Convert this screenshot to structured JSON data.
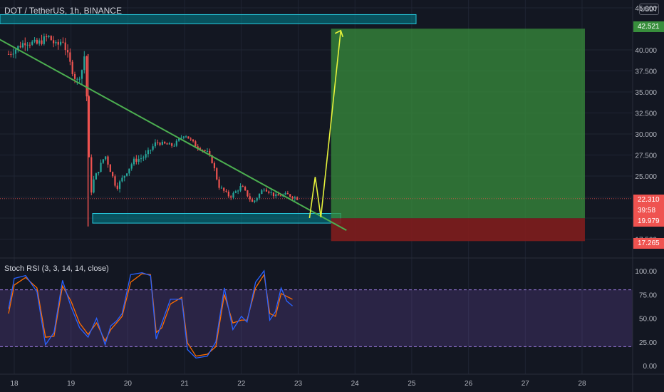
{
  "header": {
    "symbol_title": "DOT / TetherUS, 1h, BINANCE",
    "currency_badge": "USDT"
  },
  "price_axis": {
    "ticks": [
      "45.000",
      "40.000",
      "37.500",
      "35.000",
      "32.500",
      "30.000",
      "27.500",
      "25.000",
      "22.500",
      "20.000",
      "17.500"
    ],
    "target_label": "42.521",
    "current_price": "22.310",
    "countdown": "39:58",
    "entry_label": "19.979",
    "stop_label": "17.265"
  },
  "rsi": {
    "title": "Stoch RSI (3, 3, 14, 14, close)",
    "ticks": [
      "100.00",
      "75.00",
      "50.00",
      "25.00",
      "0.00"
    ]
  },
  "time_axis": {
    "ticks": [
      "18",
      "19",
      "20",
      "21",
      "22",
      "23",
      "24",
      "25",
      "26",
      "27",
      "28"
    ]
  },
  "colors": {
    "background": "#131722",
    "up": "#26a69a",
    "down": "#ef5350",
    "trendline": "#4caf50",
    "projection": "#e6f23b",
    "zone": "#00838f",
    "profit_zone": "#388e3c",
    "loss_zone": "#7f1d1d",
    "rsi_band": "#7e57c2",
    "k_line": "#2962ff",
    "d_line": "#ff6d00"
  },
  "chart_data": {
    "type": "candlestick",
    "symbol": "DOT / TetherUS",
    "interval": "1h",
    "exchange": "BINANCE",
    "ylim": [
      17.0,
      45.0
    ],
    "x_days": [
      "18",
      "19",
      "20",
      "21",
      "22",
      "23",
      "24",
      "25",
      "26",
      "27",
      "28"
    ],
    "price_path": [
      [
        17.9,
        39.5
      ],
      [
        18.2,
        41.0
      ],
      [
        18.4,
        40.7
      ],
      [
        18.6,
        41.6
      ],
      [
        18.75,
        40.4
      ],
      [
        18.85,
        41.3
      ],
      [
        19.0,
        38.0
      ],
      [
        19.1,
        36.2
      ],
      [
        19.2,
        37.8
      ],
      [
        19.25,
        40.0
      ],
      [
        19.3,
        29.0
      ],
      [
        19.35,
        23.0
      ],
      [
        19.4,
        24.5
      ],
      [
        19.6,
        27.5
      ],
      [
        19.8,
        23.6
      ],
      [
        20.1,
        26.8
      ],
      [
        20.3,
        27.3
      ],
      [
        20.5,
        29.0
      ],
      [
        20.8,
        28.6
      ],
      [
        21.0,
        30.0
      ],
      [
        21.2,
        28.6
      ],
      [
        21.4,
        27.8
      ],
      [
        21.5,
        26.5
      ],
      [
        21.6,
        23.8
      ],
      [
        21.8,
        22.5
      ],
      [
        22.0,
        23.8
      ],
      [
        22.2,
        21.8
      ],
      [
        22.4,
        23.6
      ],
      [
        22.6,
        22.6
      ],
      [
        22.8,
        22.8
      ],
      [
        23.0,
        22.3
      ]
    ],
    "last_price": 22.31,
    "levels": {
      "target": 42.521,
      "entry": 19.979,
      "stop": 17.265
    },
    "resistance_zone": [
      43.1,
      44.2
    ],
    "support_zone": [
      19.4,
      20.55
    ],
    "trendline": [
      [
        17.0,
        44.0
      ],
      [
        23.6,
        19.4
      ]
    ],
    "projection_path": [
      [
        23.2,
        20.0
      ],
      [
        23.3,
        24.9
      ],
      [
        23.4,
        20.1
      ],
      [
        23.75,
        42.3
      ]
    ],
    "stoch_rsi": {
      "title": "Stoch RSI (3, 3, 14, 14, close)",
      "ylim": [
        0,
        100
      ],
      "bands": [
        20,
        80
      ],
      "k": [
        [
          17.9,
          60
        ],
        [
          18.0,
          92
        ],
        [
          18.2,
          95
        ],
        [
          18.4,
          78
        ],
        [
          18.55,
          22
        ],
        [
          18.7,
          35
        ],
        [
          18.85,
          90
        ],
        [
          19.0,
          62
        ],
        [
          19.15,
          40
        ],
        [
          19.3,
          30
        ],
        [
          19.45,
          50
        ],
        [
          19.6,
          22
        ],
        [
          19.7,
          42
        ],
        [
          19.8,
          47
        ],
        [
          19.9,
          55
        ],
        [
          20.05,
          96
        ],
        [
          20.25,
          98
        ],
        [
          20.4,
          95
        ],
        [
          20.5,
          28
        ],
        [
          20.6,
          45
        ],
        [
          20.75,
          70
        ],
        [
          20.95,
          70
        ],
        [
          21.05,
          17
        ],
        [
          21.2,
          8
        ],
        [
          21.4,
          10
        ],
        [
          21.55,
          25
        ],
        [
          21.7,
          82
        ],
        [
          21.85,
          38
        ],
        [
          22.0,
          52
        ],
        [
          22.1,
          46
        ],
        [
          22.25,
          88
        ],
        [
          22.4,
          100
        ],
        [
          22.5,
          48
        ],
        [
          22.6,
          57
        ],
        [
          22.7,
          82
        ],
        [
          22.8,
          68
        ],
        [
          22.9,
          63
        ]
      ],
      "d": [
        [
          17.9,
          55
        ],
        [
          18.0,
          85
        ],
        [
          18.2,
          93
        ],
        [
          18.4,
          82
        ],
        [
          18.55,
          30
        ],
        [
          18.7,
          31
        ],
        [
          18.85,
          84
        ],
        [
          19.0,
          68
        ],
        [
          19.15,
          45
        ],
        [
          19.3,
          33
        ],
        [
          19.45,
          45
        ],
        [
          19.6,
          26
        ],
        [
          19.7,
          38
        ],
        [
          19.8,
          45
        ],
        [
          19.9,
          52
        ],
        [
          20.05,
          88
        ],
        [
          20.25,
          97
        ],
        [
          20.4,
          96
        ],
        [
          20.5,
          35
        ],
        [
          20.6,
          40
        ],
        [
          20.75,
          65
        ],
        [
          20.95,
          72
        ],
        [
          21.05,
          24
        ],
        [
          21.2,
          10
        ],
        [
          21.4,
          12
        ],
        [
          21.55,
          20
        ],
        [
          21.7,
          75
        ],
        [
          21.85,
          45
        ],
        [
          22.0,
          48
        ],
        [
          22.1,
          48
        ],
        [
          22.25,
          82
        ],
        [
          22.4,
          96
        ],
        [
          22.5,
          55
        ],
        [
          22.6,
          52
        ],
        [
          22.7,
          76
        ],
        [
          22.8,
          73
        ],
        [
          22.9,
          70
        ]
      ]
    }
  }
}
